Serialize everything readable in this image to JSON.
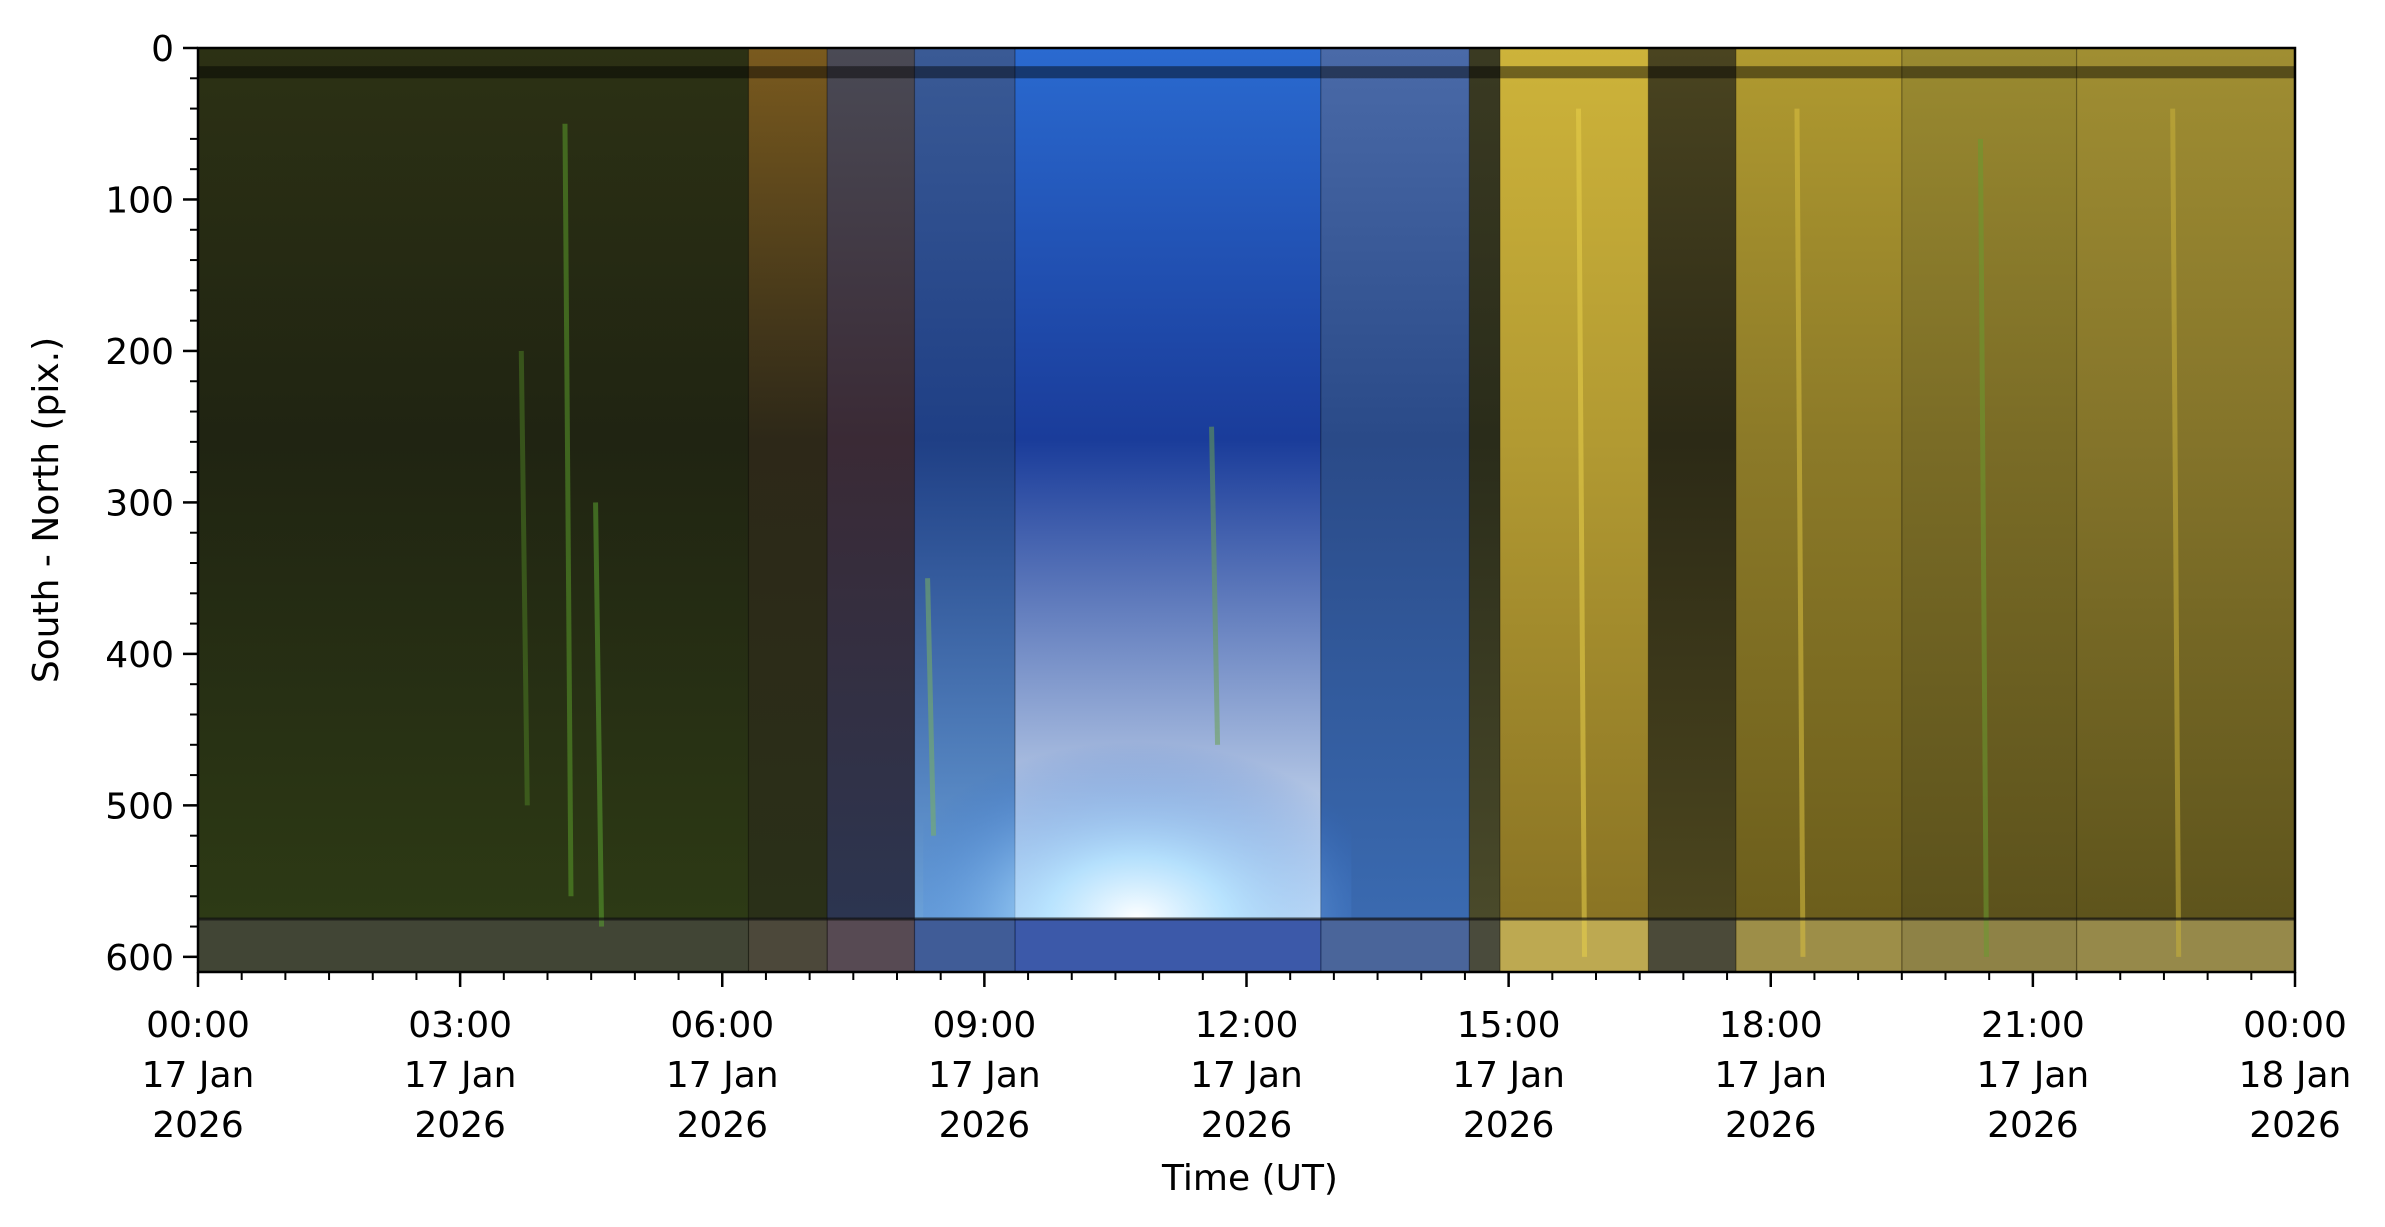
{
  "chart_data": {
    "type": "heatmap",
    "title": "",
    "xlabel": "Time (UT)",
    "ylabel": "South - North (pix.)",
    "x_unit": "hours UT, 17 Jan 2026",
    "xlim": [
      0,
      24
    ],
    "ylim": [
      610,
      0
    ],
    "y_inverted": true,
    "grid": false,
    "legend": "none",
    "x_ticks": [
      {
        "value": 0,
        "time": "00:00",
        "day": "17 Jan",
        "year": "2026"
      },
      {
        "value": 3,
        "time": "03:00",
        "day": "17 Jan",
        "year": "2026"
      },
      {
        "value": 6,
        "time": "06:00",
        "day": "17 Jan",
        "year": "2026"
      },
      {
        "value": 9,
        "time": "09:00",
        "day": "17 Jan",
        "year": "2026"
      },
      {
        "value": 12,
        "time": "12:00",
        "day": "17 Jan",
        "year": "2026"
      },
      {
        "value": 15,
        "time": "15:00",
        "day": "17 Jan",
        "year": "2026"
      },
      {
        "value": 18,
        "time": "18:00",
        "day": "17 Jan",
        "year": "2026"
      },
      {
        "value": 21,
        "time": "21:00",
        "day": "17 Jan",
        "year": "2026"
      },
      {
        "value": 24,
        "time": "00:00",
        "day": "18 Jan",
        "year": "2026"
      }
    ],
    "x_minor_step": 0.5,
    "y_ticks": [
      0,
      100,
      200,
      300,
      400,
      500,
      600
    ],
    "y_minor_step": 20,
    "horizon_row": 575,
    "top_band_rows": [
      12,
      20
    ],
    "bands": [
      {
        "start": 0.0,
        "end": 6.3,
        "color_top": "#2c3114",
        "color_mid": "#202412",
        "color_bottom": "#2d3a15"
      },
      {
        "start": 6.3,
        "end": 7.2,
        "color_top": "#7a5a1e",
        "color_mid": "#2d2818",
        "color_bottom": "#2a3018"
      },
      {
        "start": 7.2,
        "end": 8.2,
        "color_top": "#4a4a55",
        "color_mid": "#3a2a35",
        "color_bottom": "#2c3550"
      },
      {
        "start": 8.2,
        "end": 9.35,
        "color_top": "#3a5a95",
        "color_mid": "#1f3f85",
        "color_bottom": "#6aa0d8"
      },
      {
        "start": 9.35,
        "end": 12.85,
        "color_top": "#2a6ad0",
        "color_mid": "#1a3c9a",
        "color_bottom": "#e8f6ff"
      },
      {
        "start": 12.85,
        "end": 14.55,
        "color_top": "#4a6aa8",
        "color_mid": "#2a4a88",
        "color_bottom": "#3a6ab0"
      },
      {
        "start": 14.55,
        "end": 14.9,
        "color_top": "#3a3a22",
        "color_mid": "#2a2c1a",
        "color_bottom": "#4a4a2a"
      },
      {
        "start": 14.9,
        "end": 16.6,
        "color_top": "#cdb33a",
        "color_mid": "#b29a32",
        "color_bottom": "#8a7424"
      },
      {
        "start": 16.6,
        "end": 17.6,
        "color_top": "#4a4420",
        "color_mid": "#2c2a16",
        "color_bottom": "#4c461e"
      },
      {
        "start": 17.6,
        "end": 19.5,
        "color_top": "#b09a30",
        "color_mid": "#8c7a28",
        "color_bottom": "#6c5e1c"
      },
      {
        "start": 19.5,
        "end": 21.5,
        "color_top": "#9a8a30",
        "color_mid": "#7a6c26",
        "color_bottom": "#5c521c"
      },
      {
        "start": 21.5,
        "end": 24.0,
        "color_top": "#a08e32",
        "color_mid": "#84742a",
        "color_bottom": "#5e541c"
      }
    ],
    "streaks": [
      {
        "x": 4.2,
        "y0": 50,
        "y1": 560,
        "color": "#5a9a2a"
      },
      {
        "x": 4.55,
        "y0": 300,
        "y1": 580,
        "color": "#5aa030"
      },
      {
        "x": 3.7,
        "y0": 200,
        "y1": 500,
        "color": "#4a7a22"
      },
      {
        "x": 8.35,
        "y0": 350,
        "y1": 520,
        "color": "#7ab060"
      },
      {
        "x": 11.6,
        "y0": 250,
        "y1": 460,
        "color": "#6aa050"
      },
      {
        "x": 15.8,
        "y0": 40,
        "y1": 600,
        "color": "#e8d04a"
      },
      {
        "x": 18.3,
        "y0": 40,
        "y1": 600,
        "color": "#d8c040"
      },
      {
        "x": 20.4,
        "y0": 60,
        "y1": 600,
        "color": "#6a9a30"
      },
      {
        "x": 22.6,
        "y0": 40,
        "y1": 600,
        "color": "#c8b03a"
      }
    ]
  }
}
